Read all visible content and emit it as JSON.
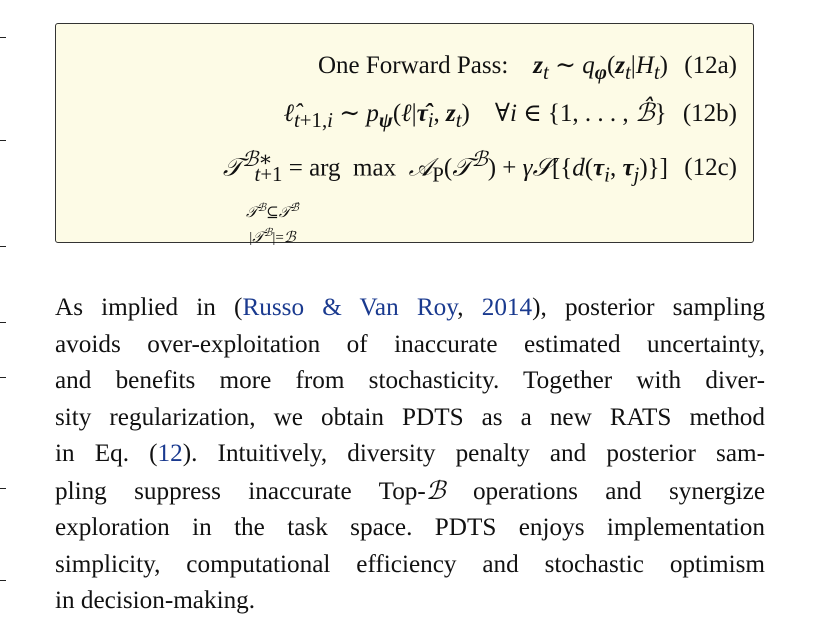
{
  "equations": {
    "a_label": "One Forward Pass:",
    "a_number": "(12a)",
    "b_number": "(12b)",
    "c_number": "(12c)"
  },
  "paragraph": {
    "lines": [
      [
        "As implied in (",
        "Russo & Van Roy",
        ", ",
        "2014",
        "), posterior sampling"
      ],
      "avoids over-exploitation of inaccurate estimated uncertainty,",
      "and benefits more from stochasticity. Together with diver-",
      "sity regularization, we obtain PDTS as a new RATS method",
      [
        "in Eq. (",
        "12",
        "). Intuitively, diversity penalty and posterior sam-"
      ],
      [
        "pling suppress inaccurate Top-",
        "ℬ",
        " operations and synergize"
      ],
      "exploration in the task space. PDTS enjoys implementation",
      "simplicity, computational efficiency and stochastic optimism",
      "in decision-making."
    ]
  }
}
